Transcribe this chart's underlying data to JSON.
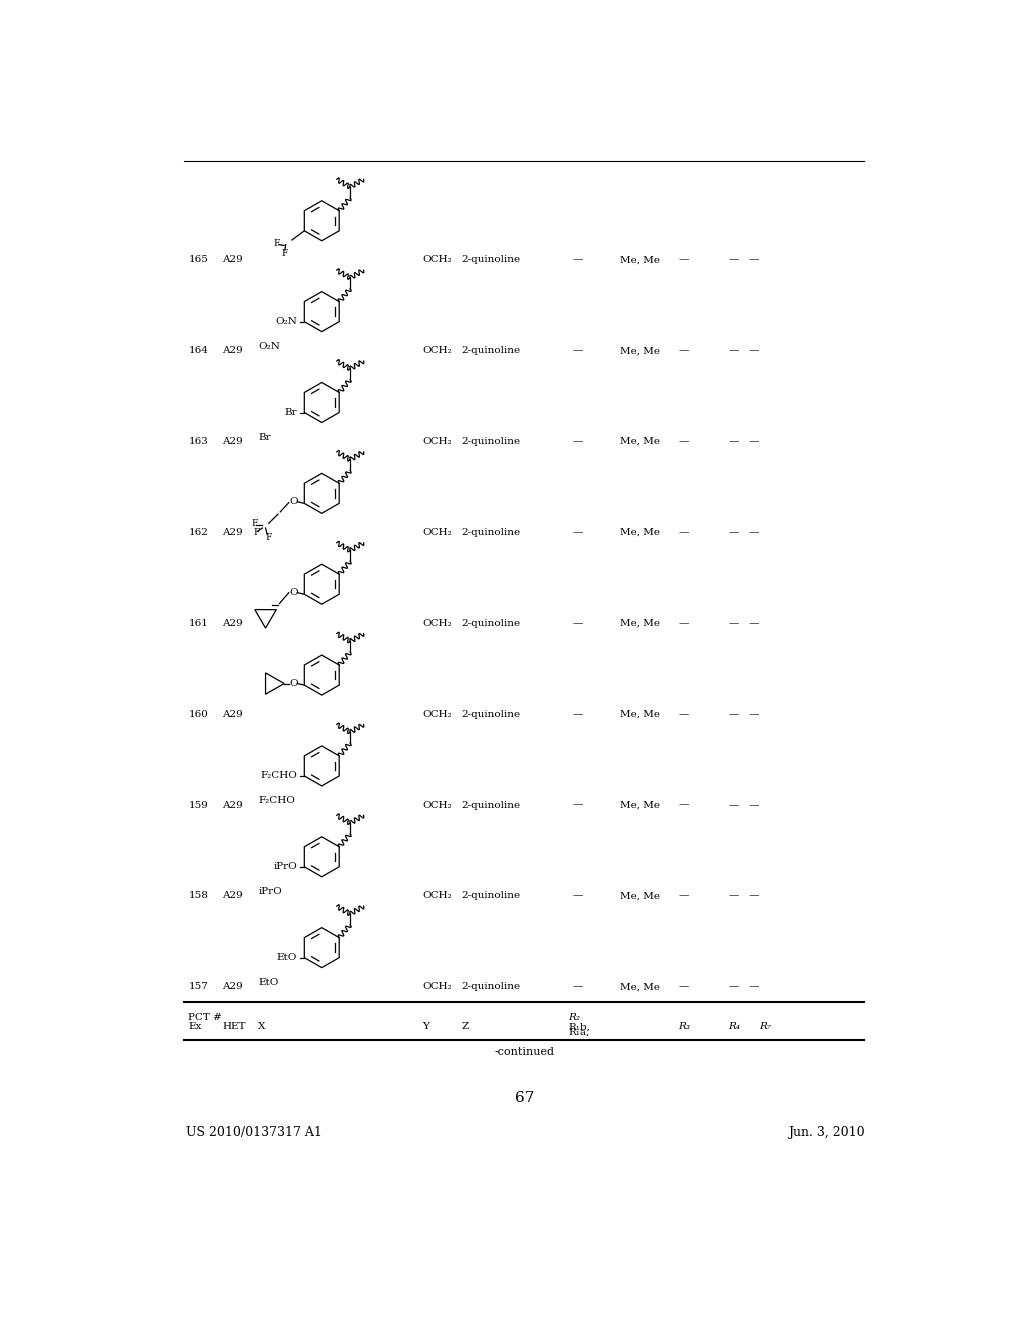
{
  "patent_number": "US 2010/0137317 A1",
  "date": "Jun. 3, 2010",
  "page_number": "67",
  "continued_label": "-continued",
  "rows": [
    {
      "ex": "157",
      "het": "A29",
      "x_label": "EtO",
      "y": "OCH₂",
      "z": "2-quinoline",
      "r1ab": "—",
      "r2": "Me, Me",
      "r3": "—",
      "r4r7": "—   —",
      "struct": "simple_sub"
    },
    {
      "ex": "158",
      "het": "A29",
      "x_label": "iPrO",
      "y": "OCH₂",
      "z": "2-quinoline",
      "r1ab": "—",
      "r2": "Me, Me",
      "r3": "—",
      "r4r7": "—   —",
      "struct": "simple_sub"
    },
    {
      "ex": "159",
      "het": "A29",
      "x_label": "F₂CHO",
      "y": "OCH₂",
      "z": "2-quinoline",
      "r1ab": "—",
      "r2": "Me, Me",
      "r3": "—",
      "r4r7": "—   —",
      "struct": "simple_sub"
    },
    {
      "ex": "160",
      "het": "A29",
      "x_label": "",
      "y": "OCH₂",
      "z": "2-quinoline",
      "r1ab": "—",
      "r2": "Me, Me",
      "r3": "—",
      "r4r7": "—   —",
      "struct": "cyclopropyloxy"
    },
    {
      "ex": "161",
      "het": "A29",
      "x_label": "",
      "y": "OCH₂",
      "z": "2-quinoline",
      "r1ab": "—",
      "r2": "Me, Me",
      "r3": "—",
      "r4r7": "—   —",
      "struct": "cyclopropylmethyloxy"
    },
    {
      "ex": "162",
      "het": "A29",
      "x_label": "",
      "y": "OCH₂",
      "z": "2-quinoline",
      "r1ab": "—",
      "r2": "Me, Me",
      "r3": "—",
      "r4r7": "—   —",
      "struct": "CF3CH2O"
    },
    {
      "ex": "163",
      "het": "A29",
      "x_label": "Br",
      "y": "OCH₂",
      "z": "2-quinoline",
      "r1ab": "—",
      "r2": "Me, Me",
      "r3": "—",
      "r4r7": "—   —",
      "struct": "simple_sub"
    },
    {
      "ex": "164",
      "het": "A29",
      "x_label": "O₂N",
      "y": "OCH₂",
      "z": "2-quinoline",
      "r1ab": "—",
      "r2": "Me, Me",
      "r3": "—",
      "r4r7": "—   —",
      "struct": "simple_sub"
    },
    {
      "ex": "165",
      "het": "A29",
      "x_label": "",
      "y": "OCH₂",
      "z": "2-quinoline",
      "r1ab": "—",
      "r2": "Me, Me",
      "r3": "—",
      "r4r7": "—   —",
      "struct": "CHF2"
    }
  ],
  "background_color": "#ffffff",
  "text_color": "#000000",
  "line_color": "#000000"
}
